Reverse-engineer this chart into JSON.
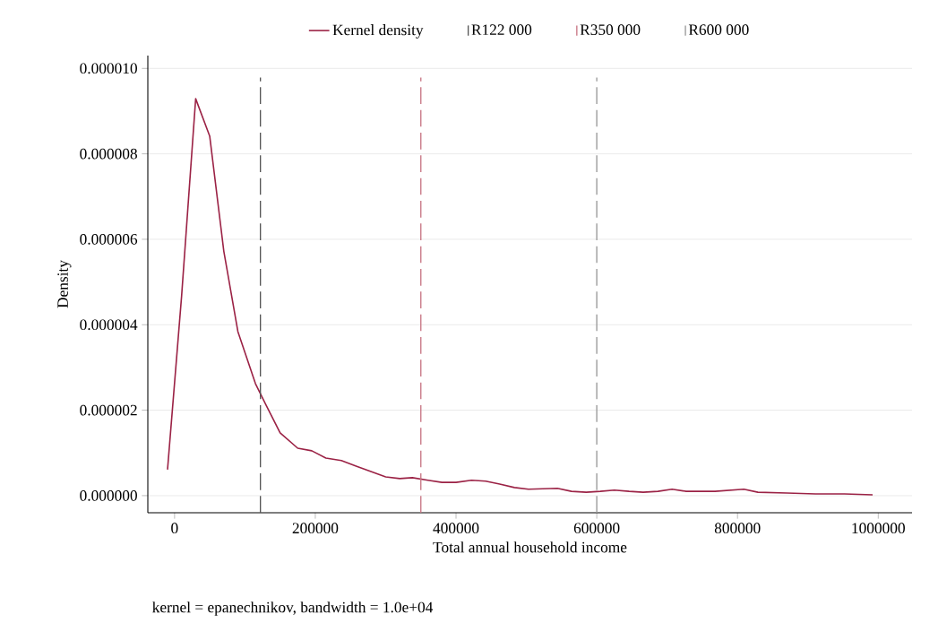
{
  "chart_data": {
    "type": "line",
    "xlabel": "Total annual household income",
    "ylabel": "Density",
    "x": [
      -10000,
      10000,
      30000,
      50000,
      70000,
      90000,
      115000,
      130000,
      150000,
      175000,
      195000,
      215000,
      237000,
      258000,
      300000,
      320000,
      338000,
      360000,
      380000,
      400000,
      422000,
      442000,
      462000,
      483000,
      503000,
      544000,
      564000,
      585000,
      605000,
      625000,
      646000,
      666000,
      687000,
      707000,
      727000,
      768000,
      809000,
      829000,
      870000,
      911000,
      952000,
      992000
    ],
    "series": [
      {
        "name": "Kernel density",
        "color": "#9b2245",
        "values": [
          6.1e-07,
          4.67e-06,
          9.29e-06,
          8.41e-06,
          5.72e-06,
          3.84e-06,
          2.62e-06,
          2.12e-06,
          1.47e-06,
          1.11e-06,
          1.05e-06,
          8.8e-07,
          8.2e-07,
          6.9e-07,
          4.4e-07,
          4e-07,
          4.2e-07,
          3.6e-07,
          3.1e-07,
          3.1e-07,
          3.6e-07,
          3.4e-07,
          2.7e-07,
          1.9e-07,
          1.5e-07,
          1.7e-07,
          1e-07,
          8e-08,
          1e-07,
          1.3e-07,
          1e-07,
          8e-08,
          1e-07,
          1.5e-07,
          1e-07,
          1e-07,
          1.5e-07,
          8e-08,
          6e-08,
          4e-08,
          4e-08,
          2e-08
        ]
      }
    ],
    "xlim": [
      -38000,
      1048000
    ],
    "ylim": [
      -4e-07,
      1.03e-05
    ],
    "xticks": [
      0,
      200000,
      400000,
      600000,
      800000,
      1000000
    ],
    "yticks": [
      {
        "value": 0,
        "label": "0.000000"
      },
      {
        "value": 2e-06,
        "label": "0.000002"
      },
      {
        "value": 4e-06,
        "label": "0.000004"
      },
      {
        "value": 6e-06,
        "label": "0.000006"
      },
      {
        "value": 8e-06,
        "label": "0.000008"
      },
      {
        "value": 1e-05,
        "label": "0.000010"
      }
    ],
    "ref_lines": [
      {
        "axis": "x",
        "value": 122000,
        "label": "R122 000",
        "color": "#555555",
        "line_style": "dashed"
      },
      {
        "axis": "x",
        "value": 350000,
        "label": "R350 000",
        "color": "#c87483",
        "line_style": "dashed"
      },
      {
        "axis": "x",
        "value": 600000,
        "label": "R600 000",
        "color": "#999999",
        "line_style": "dashed"
      }
    ],
    "grid": "y",
    "legend": "top",
    "line_style": "solid",
    "marker": "none",
    "annotations": [
      "kernel = epanechnikov, bandwidth =  1.0e+04"
    ]
  }
}
